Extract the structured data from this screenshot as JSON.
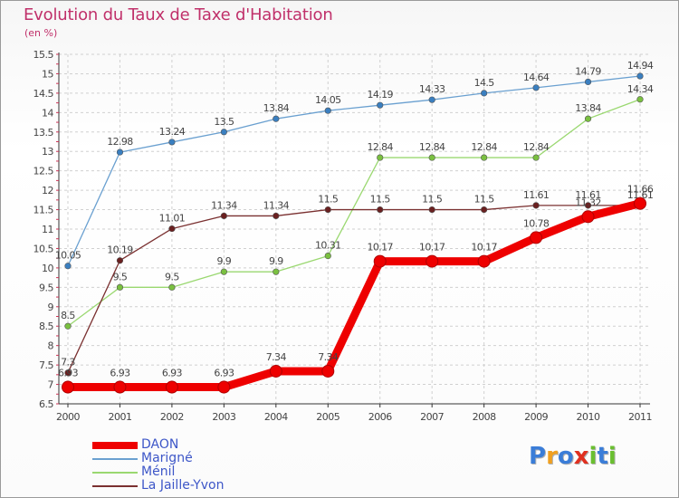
{
  "title": "Evolution du Taux de Taxe d'Habitation",
  "unit_label": "(en %)",
  "colors": {
    "title": "#c0306a",
    "axis_text": "#444444",
    "grid": "#d0d0d0",
    "legend_text": "#3d56c8"
  },
  "logo": {
    "text": "Proxiti",
    "letters": [
      {
        "ch": "P",
        "color": "#3a7dd8"
      },
      {
        "ch": "r",
        "color": "#f0a020"
      },
      {
        "ch": "o",
        "color": "#3a7dd8"
      },
      {
        "ch": "x",
        "color": "#e03020"
      },
      {
        "ch": "i",
        "color": "#6abf30"
      },
      {
        "ch": "t",
        "color": "#3a7dd8"
      },
      {
        "ch": "i",
        "color": "#6abf30"
      }
    ]
  },
  "chart_data": {
    "type": "line",
    "title": "Evolution du Taux de Taxe d'Habitation",
    "ylabel": "(en %)",
    "xlabel": "",
    "x": [
      "2000",
      "2001",
      "2002",
      "2003",
      "2004",
      "2005",
      "2006",
      "2007",
      "2008",
      "2009",
      "2010",
      "2011"
    ],
    "ylim": [
      6.5,
      15.5
    ],
    "yticks": [
      6.5,
      7,
      7.5,
      8,
      8.5,
      9,
      9.5,
      10,
      10.5,
      11,
      11.5,
      12,
      12.5,
      13,
      13.5,
      14,
      14.5,
      15,
      15.5
    ],
    "ytick_labels": [
      "6.5",
      "7",
      "7.5",
      "8",
      "8.5",
      "9",
      "9.5",
      "10",
      "10.5",
      "11",
      "11.5",
      "12",
      "12.5",
      "13",
      "13.5",
      "14",
      "14.5",
      "15",
      "15.5"
    ],
    "grid": true,
    "legend_position": "bottom-left",
    "series": [
      {
        "name": "Marigné",
        "color": "#6aa0d0",
        "marker_color": "#3a7fc0",
        "thick": false,
        "values": [
          10.05,
          12.98,
          13.24,
          13.5,
          13.84,
          14.05,
          14.19,
          14.33,
          14.5,
          14.64,
          14.79,
          14.94
        ],
        "labels": [
          "10.05",
          "12.98",
          "13.24",
          "13.5",
          "13.84",
          "14.05",
          "14.19",
          "14.33",
          "14.5",
          "14.64",
          "14.79",
          "14.94"
        ]
      },
      {
        "name": "Ménil",
        "color": "#9ad870",
        "marker_color": "#7ac040",
        "thick": false,
        "values": [
          8.5,
          9.5,
          9.5,
          9.9,
          9.9,
          10.31,
          12.84,
          12.84,
          12.84,
          12.84,
          13.84,
          14.34
        ],
        "labels": [
          "8.5",
          "9.5",
          "9.5",
          "9.9",
          "9.9",
          "10.31",
          "12.84",
          "12.84",
          "12.84",
          "12.84",
          "13.84",
          "14.34"
        ]
      },
      {
        "name": "La Jaille-Yvon",
        "color": "#7a3030",
        "marker_color": "#6a2020",
        "thick": false,
        "values": [
          7.3,
          10.19,
          11.01,
          11.34,
          11.34,
          11.5,
          11.5,
          11.5,
          11.5,
          11.61,
          11.61,
          11.61
        ],
        "labels": [
          "7.3",
          "10.19",
          "11.01",
          "11.34",
          "11.34",
          "11.5",
          "11.5",
          "11.5",
          "11.5",
          "11.61",
          "11.61",
          "11.61"
        ]
      },
      {
        "name": "DAON",
        "color": "#ee0000",
        "marker_color": "#ee0000",
        "thick": true,
        "values": [
          6.93,
          6.93,
          6.93,
          6.93,
          7.34,
          7.34,
          10.17,
          10.17,
          10.17,
          10.78,
          11.32,
          11.66
        ],
        "labels": [
          "6.93",
          "6.93",
          "6.93",
          "6.93",
          "7.34",
          "7.34",
          "10.17",
          "10.17",
          "10.17",
          "10.78",
          "11.32",
          "11.66"
        ]
      }
    ]
  },
  "legend": [
    {
      "name": "DAON",
      "color": "#ee0000",
      "thick": true
    },
    {
      "name": "Marigné",
      "color": "#6aa0d0",
      "thick": false
    },
    {
      "name": "Ménil",
      "color": "#9ad870",
      "thick": false
    },
    {
      "name": "La Jaille-Yvon",
      "color": "#7a3030",
      "thick": false
    }
  ]
}
